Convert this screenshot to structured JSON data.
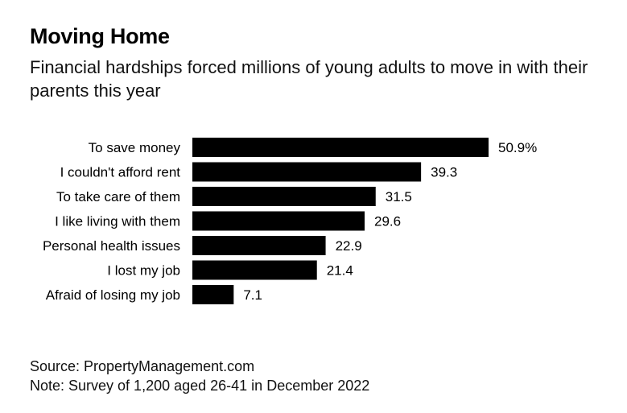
{
  "title": "Moving Home",
  "subtitle": "Financial hardships forced millions of young adults to move in with their parents this year",
  "footer": {
    "source": "Source: PropertyManagement.com",
    "note": "Note: Survey of 1,200 aged 26-41 in December 2022"
  },
  "colors": {
    "bar": "#000000",
    "text": "#000000",
    "background": "#ffffff"
  },
  "chart_data": {
    "type": "bar",
    "orientation": "horizontal",
    "categories": [
      "To save money",
      "I couldn't afford rent",
      "To take care of them",
      "I like living with them",
      "Personal health issues",
      "I lost my job",
      "Afraid of losing my job"
    ],
    "values": [
      50.9,
      39.3,
      31.5,
      29.6,
      22.9,
      21.4,
      7.1
    ],
    "value_labels": [
      "50.9%",
      "39.3",
      "31.5",
      "29.6",
      "22.9",
      "21.4",
      "7.1"
    ],
    "unit": "%",
    "xlim": [
      0,
      50.9
    ],
    "grid": false,
    "legend": "none"
  }
}
